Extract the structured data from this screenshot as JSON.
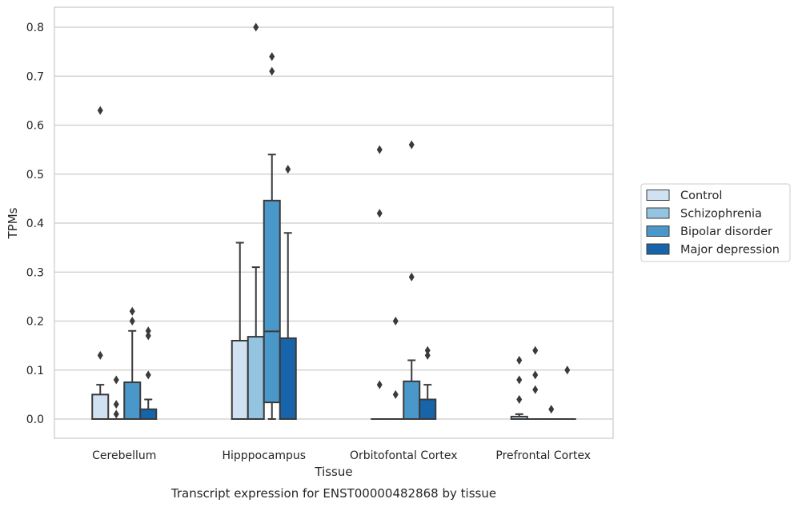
{
  "chart_data": {
    "type": "box",
    "xlabel": "Tissue",
    "ylabel": "TPMs",
    "caption": "Transcript expression for ENST00000482868 by tissue",
    "ylim": [
      -0.04,
      0.84
    ],
    "yticks": [
      0.0,
      0.1,
      0.2,
      0.3,
      0.4,
      0.5,
      0.6,
      0.7,
      0.8
    ],
    "ytick_labels": [
      "0.0",
      "0.1",
      "0.2",
      "0.3",
      "0.4",
      "0.5",
      "0.6",
      "0.7",
      "0.8"
    ],
    "grid": "horizontal",
    "legend_position": "right",
    "categories": [
      "Cerebellum",
      "Hipppocampus",
      "Orbitofontal Cortex",
      "Prefrontal Cortex"
    ],
    "series": [
      {
        "name": "Control",
        "color": "#d0e1f2",
        "boxes": [
          {
            "q1": 0.0,
            "median": 0.0,
            "q3": 0.05,
            "whisker_low": 0.0,
            "whisker_high": 0.07,
            "outliers": [
              0.13,
              0.63
            ]
          },
          {
            "q1": 0.0,
            "median": 0.0,
            "q3": 0.16,
            "whisker_low": 0.0,
            "whisker_high": 0.36,
            "outliers": []
          },
          {
            "q1": 0.0,
            "median": 0.0,
            "q3": 0.0,
            "whisker_low": 0.0,
            "whisker_high": 0.0,
            "outliers": [
              0.07,
              0.42,
              0.55
            ]
          },
          {
            "q1": 0.0,
            "median": 0.0,
            "q3": 0.005,
            "whisker_low": 0.0,
            "whisker_high": 0.01,
            "outliers": [
              0.04,
              0.08,
              0.12
            ]
          }
        ]
      },
      {
        "name": "Schizophrenia",
        "color": "#94c4df",
        "boxes": [
          {
            "q1": 0.0,
            "median": 0.0,
            "q3": 0.0,
            "whisker_low": 0.0,
            "whisker_high": 0.0,
            "outliers": [
              0.01,
              0.03,
              0.08
            ]
          },
          {
            "q1": 0.0,
            "median": 0.0,
            "q3": 0.168,
            "whisker_low": 0.0,
            "whisker_high": 0.31,
            "outliers": [
              0.8
            ]
          },
          {
            "q1": 0.0,
            "median": 0.0,
            "q3": 0.0,
            "whisker_low": 0.0,
            "whisker_high": 0.0,
            "outliers": [
              0.05,
              0.2
            ]
          },
          {
            "q1": 0.0,
            "median": 0.0,
            "q3": 0.0,
            "whisker_low": 0.0,
            "whisker_high": 0.0,
            "outliers": [
              0.06,
              0.09,
              0.14
            ]
          }
        ]
      },
      {
        "name": "Bipolar disorder",
        "color": "#4a98c9",
        "boxes": [
          {
            "q1": 0.0,
            "median": 0.0,
            "q3": 0.075,
            "whisker_low": 0.0,
            "whisker_high": 0.18,
            "outliers": [
              0.2,
              0.22
            ]
          },
          {
            "q1": 0.034,
            "median": 0.179,
            "q3": 0.446,
            "whisker_low": 0.0,
            "whisker_high": 0.54,
            "outliers": [
              0.71,
              0.74
            ]
          },
          {
            "q1": 0.0,
            "median": 0.0,
            "q3": 0.077,
            "whisker_low": 0.0,
            "whisker_high": 0.12,
            "outliers": [
              0.29,
              0.56
            ]
          },
          {
            "q1": 0.0,
            "median": 0.0,
            "q3": 0.0,
            "whisker_low": 0.0,
            "whisker_high": 0.0,
            "outliers": [
              0.02
            ]
          }
        ]
      },
      {
        "name": "Major depression",
        "color": "#1764ab",
        "boxes": [
          {
            "q1": 0.0,
            "median": 0.0,
            "q3": 0.02,
            "whisker_low": 0.0,
            "whisker_high": 0.04,
            "outliers": [
              0.09,
              0.17,
              0.18
            ]
          },
          {
            "q1": 0.0,
            "median": 0.0,
            "q3": 0.165,
            "whisker_low": 0.0,
            "whisker_high": 0.38,
            "outliers": [
              0.51
            ]
          },
          {
            "q1": 0.0,
            "median": 0.0,
            "q3": 0.04,
            "whisker_low": 0.0,
            "whisker_high": 0.07,
            "outliers": [
              0.13,
              0.14
            ]
          },
          {
            "q1": 0.0,
            "median": 0.0,
            "q3": 0.0,
            "whisker_low": 0.0,
            "whisker_high": 0.0,
            "outliers": [
              0.1
            ]
          }
        ]
      }
    ]
  }
}
